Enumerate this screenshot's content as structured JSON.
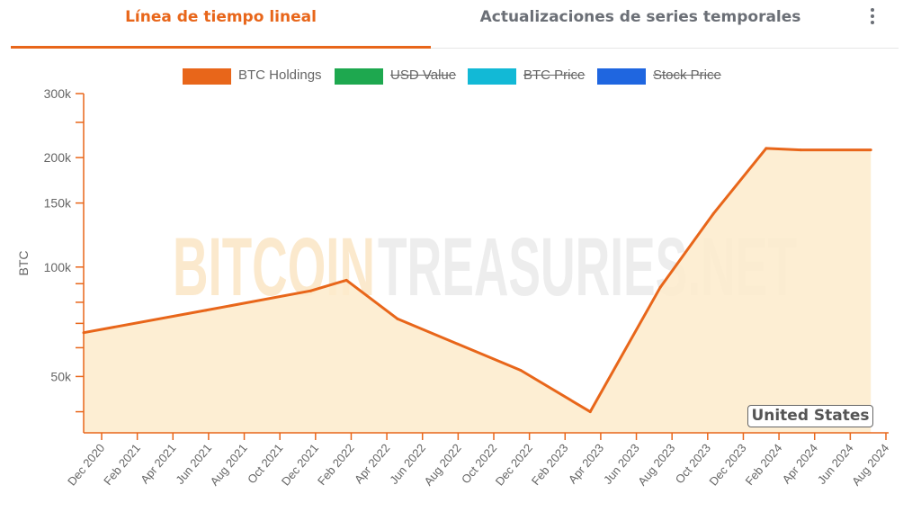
{
  "tabs": [
    {
      "label": "Línea de tiempo lineal",
      "active": true
    },
    {
      "label": "Actualizaciones de series temporales",
      "active": false
    }
  ],
  "menu_icon": "more-vertical-icon",
  "watermark": {
    "left": "BITCOIN",
    "right": "TREASURIES.NET"
  },
  "badge": "United States",
  "colors": {
    "accent": "#e8661a",
    "area_fill": "#fdebcb",
    "usd_value": "#1ea84f",
    "btc_price": "#12b9d6",
    "stock_price": "#1f66e0"
  },
  "chart_data": {
    "type": "area",
    "ylabel": "BTC",
    "y_scale": "log",
    "ylim": [
      35000,
      300000
    ],
    "y_ticks": [
      {
        "value": 50000,
        "label": "50k"
      },
      {
        "value": 100000,
        "label": "100k"
      },
      {
        "value": 150000,
        "label": "150k"
      },
      {
        "value": 200000,
        "label": "200k"
      },
      {
        "value": 300000,
        "label": "300k"
      }
    ],
    "y_minor_ticks": [
      40000,
      60000,
      70000,
      80000,
      90000,
      250000
    ],
    "x_ticks": [
      "Dec 2020",
      "Feb 2021",
      "Apr 2021",
      "Jun 2021",
      "Aug 2021",
      "Oct 2021",
      "Dec 2021",
      "Feb 2022",
      "Apr 2022",
      "Jun 2022",
      "Aug 2022",
      "Oct 2022",
      "Dec 2022",
      "Feb 2023",
      "Apr 2023",
      "Jun 2023",
      "Aug 2023",
      "Oct 2023",
      "Dec 2023",
      "Feb 2024",
      "Apr 2024",
      "Jun 2024",
      "Aug 2024"
    ],
    "legend": [
      {
        "name": "BTC Holdings",
        "color": "#e8661a",
        "hidden": false
      },
      {
        "name": "USD Value",
        "color": "#1ea84f",
        "hidden": true
      },
      {
        "name": "BTC Price",
        "color": "#12b9d6",
        "hidden": true
      },
      {
        "name": "Stock Price",
        "color": "#1f66e0",
        "hidden": true
      }
    ],
    "series": [
      {
        "name": "BTC Holdings",
        "x": [
          "2020-11",
          "2021-06",
          "2021-12",
          "2022-02",
          "2022-05",
          "2022-12",
          "2023-04",
          "2023-08",
          "2023-11",
          "2024-02",
          "2024-04",
          "2024-08"
        ],
        "values": [
          66000,
          76000,
          86000,
          92000,
          72000,
          52000,
          40000,
          88000,
          140000,
          212000,
          210000,
          210000
        ]
      }
    ]
  }
}
